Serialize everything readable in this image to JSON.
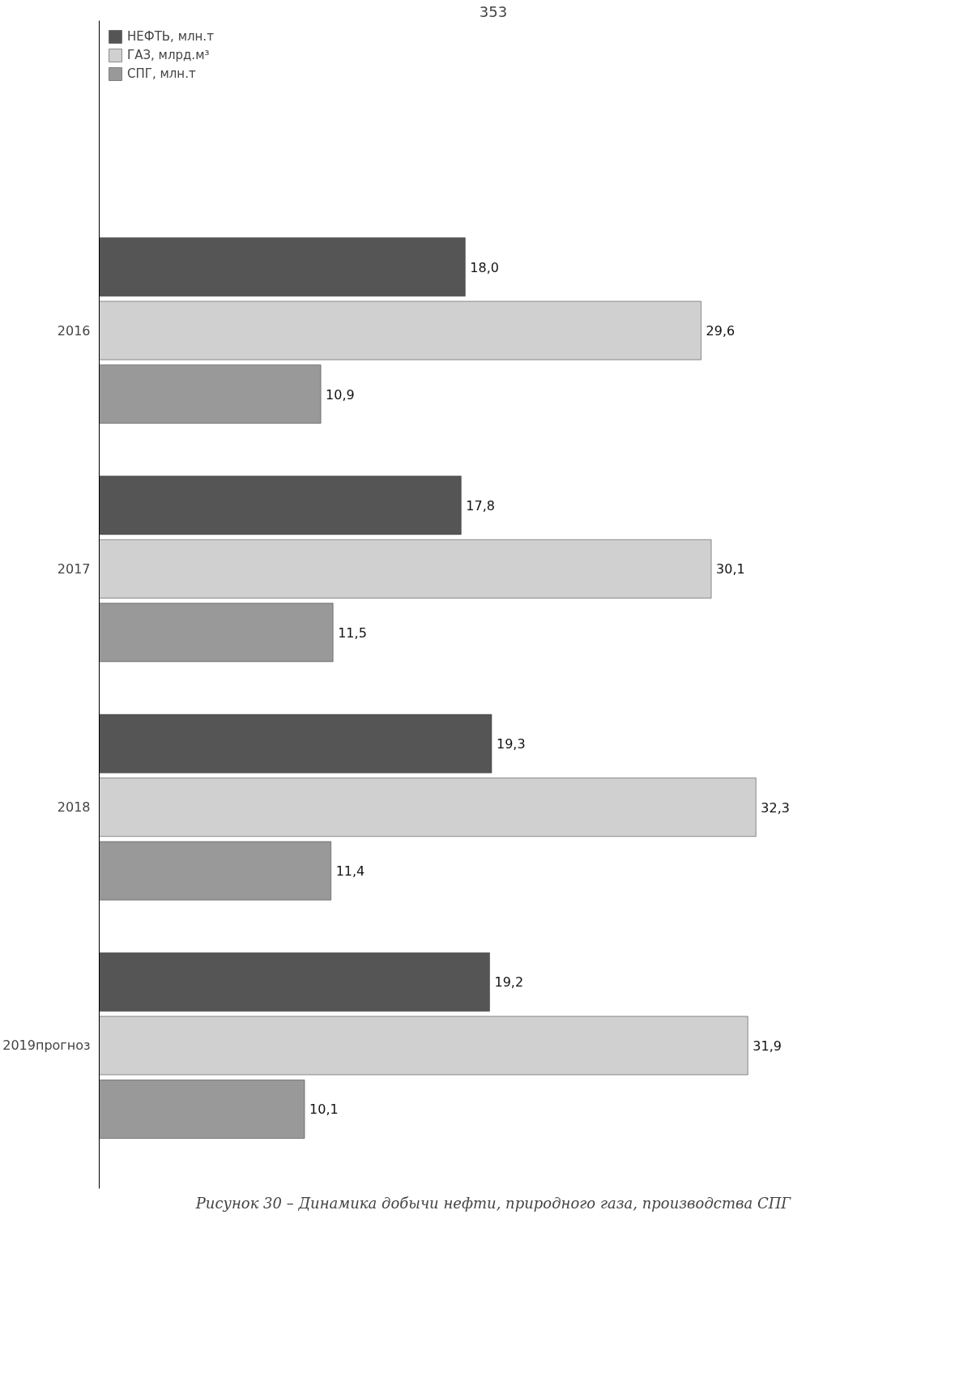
{
  "chart_data": {
    "type": "bar",
    "orientation": "horizontal",
    "categories": [
      "2016",
      "2017",
      "2018",
      "2019прогноз"
    ],
    "series": [
      {
        "name": "НЕФТЬ, млн.т",
        "color": "#555555",
        "values": [
          18.0,
          17.8,
          19.3,
          19.2
        ],
        "value_labels": [
          "18,0",
          "17,8",
          "19,3",
          "19,2"
        ]
      },
      {
        "name": "ГАЗ, млрд.м³",
        "color": "#d0d0d0",
        "values": [
          29.6,
          30.1,
          32.3,
          31.9
        ],
        "value_labels": [
          "29,6",
          "30,1",
          "32,3",
          "31,9"
        ]
      },
      {
        "name": "СПГ, млн.т",
        "color": "#999999",
        "values": [
          10.9,
          11.5,
          11.4,
          10.1
        ],
        "value_labels": [
          "10,9",
          "11,5",
          "11,4",
          "10,1"
        ]
      }
    ],
    "legend": "top left",
    "grid": false,
    "annotations": [
      "353",
      "Рисунок 30 – Динамика добычи нефти, природного газа, производства СПГ"
    ]
  }
}
